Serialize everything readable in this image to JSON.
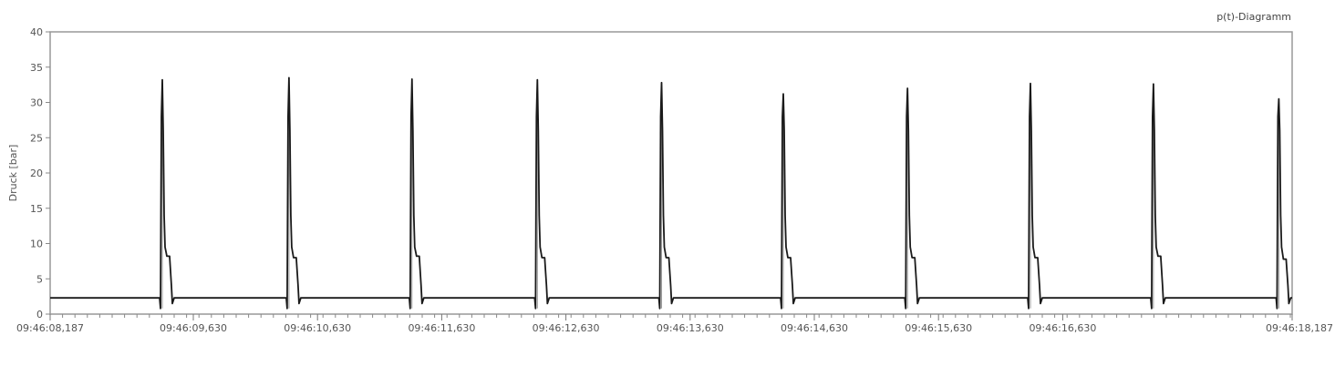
{
  "chart_data": {
    "type": "line",
    "title": "p(t)-Diagramm",
    "ylabel": "Druck [bar]",
    "xlabel": "",
    "ylim": [
      0,
      40
    ],
    "yticks": [
      0,
      5,
      10,
      15,
      20,
      25,
      30,
      35,
      40
    ],
    "xlim": [
      "09:46:08,187",
      "09:46:18,187"
    ],
    "xtick_labels": [
      "09:46:08,187",
      "09:46:09,630",
      "09:46:10,630",
      "09:46:11,630",
      "09:46:12,630",
      "09:46:13,630",
      "09:46:14,630",
      "09:46:15,630",
      "09:46:16,630",
      "09:46:18,187"
    ],
    "grid": false,
    "line_color": "#1a1a1a",
    "baseline_bar": 2.3,
    "series": [
      {
        "peaks": [
          {
            "time_s": 9.09,
            "peak_bar": 33.2,
            "plateau_bar": 8.2
          },
          {
            "time_s": 10.11,
            "peak_bar": 33.5,
            "plateau_bar": 8.0
          },
          {
            "time_s": 11.1,
            "peak_bar": 33.3,
            "plateau_bar": 8.2
          },
          {
            "time_s": 12.11,
            "peak_bar": 33.2,
            "plateau_bar": 8.0
          },
          {
            "time_s": 13.11,
            "peak_bar": 32.8,
            "plateau_bar": 8.0
          },
          {
            "time_s": 14.09,
            "peak_bar": 31.2,
            "plateau_bar": 8.0
          },
          {
            "time_s": 15.09,
            "peak_bar": 32.0,
            "plateau_bar": 8.0
          },
          {
            "time_s": 16.08,
            "peak_bar": 32.7,
            "plateau_bar": 8.0
          },
          {
            "time_s": 17.07,
            "peak_bar": 32.6,
            "plateau_bar": 8.2
          },
          {
            "time_s": 18.08,
            "peak_bar": 30.5,
            "plateau_bar": 7.8
          }
        ]
      }
    ]
  }
}
